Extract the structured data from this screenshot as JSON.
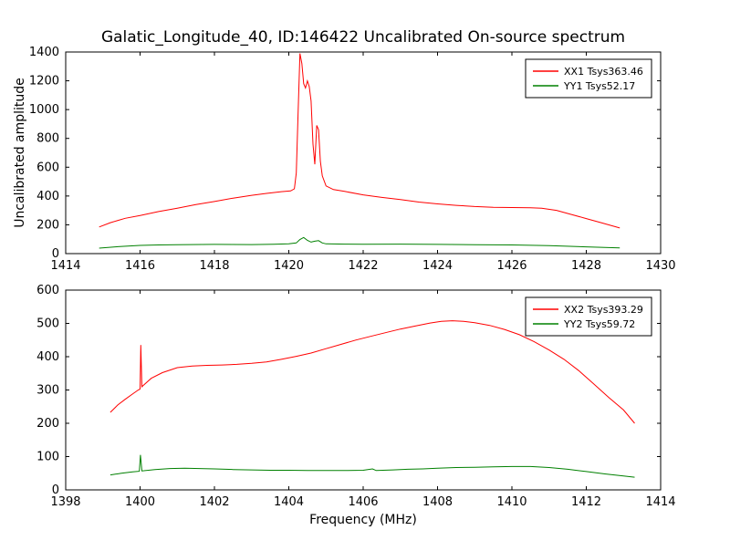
{
  "figure": {
    "background": "#ffffff",
    "frame_color": "#000000"
  },
  "chart_data": [
    {
      "type": "line",
      "title": "Galatic_Longitude_40, ID:146422 Uncalibrated On-source spectrum",
      "xlabel": "",
      "ylabel": "Uncalibrated amplitude",
      "xlim": [
        1414,
        1430
      ],
      "ylim": [
        0,
        1400
      ],
      "xticks": [
        1414,
        1416,
        1418,
        1420,
        1422,
        1424,
        1426,
        1428,
        1430
      ],
      "yticks": [
        0,
        200,
        400,
        600,
        800,
        1000,
        1200,
        1400
      ],
      "grid": false,
      "legend": {
        "position": "upper right",
        "entries": [
          {
            "label": "XX1 Tsys363.46",
            "color": "#ff0000"
          },
          {
            "label": "YY1 Tsys52.17",
            "color": "#008000"
          }
        ]
      },
      "series": [
        {
          "name": "XX1 Tsys363.46",
          "color": "#ff0000",
          "points": [
            [
              1414.9,
              185
            ],
            [
              1415.2,
              215
            ],
            [
              1415.6,
              245
            ],
            [
              1416,
              265
            ],
            [
              1416.5,
              292
            ],
            [
              1417,
              315
            ],
            [
              1417.5,
              340
            ],
            [
              1418,
              362
            ],
            [
              1418.5,
              385
            ],
            [
              1419,
              405
            ],
            [
              1419.4,
              418
            ],
            [
              1419.8,
              430
            ],
            [
              1420.05,
              435
            ],
            [
              1420.15,
              450
            ],
            [
              1420.2,
              560
            ],
            [
              1420.25,
              980
            ],
            [
              1420.3,
              1390
            ],
            [
              1420.35,
              1320
            ],
            [
              1420.4,
              1180
            ],
            [
              1420.45,
              1150
            ],
            [
              1420.5,
              1200
            ],
            [
              1420.55,
              1160
            ],
            [
              1420.6,
              1060
            ],
            [
              1420.65,
              760
            ],
            [
              1420.7,
              620
            ],
            [
              1420.75,
              890
            ],
            [
              1420.8,
              860
            ],
            [
              1420.85,
              640
            ],
            [
              1420.9,
              540
            ],
            [
              1421,
              470
            ],
            [
              1421.2,
              445
            ],
            [
              1421.5,
              432
            ],
            [
              1422,
              408
            ],
            [
              1422.5,
              390
            ],
            [
              1423,
              375
            ],
            [
              1423.5,
              358
            ],
            [
              1424,
              345
            ],
            [
              1424.5,
              335
            ],
            [
              1425,
              327
            ],
            [
              1425.5,
              322
            ],
            [
              1426,
              320
            ],
            [
              1426.5,
              318
            ],
            [
              1426.8,
              315
            ],
            [
              1427.2,
              300
            ],
            [
              1427.6,
              272
            ],
            [
              1428,
              243
            ],
            [
              1428.4,
              215
            ],
            [
              1428.9,
              178
            ]
          ]
        },
        {
          "name": "YY1 Tsys52.17",
          "color": "#008000",
          "points": [
            [
              1414.9,
              38
            ],
            [
              1415.4,
              48
            ],
            [
              1416,
              57
            ],
            [
              1416.5,
              60
            ],
            [
              1417,
              62
            ],
            [
              1418,
              64
            ],
            [
              1419,
              63
            ],
            [
              1419.6,
              65
            ],
            [
              1420,
              68
            ],
            [
              1420.2,
              74
            ],
            [
              1420.3,
              98
            ],
            [
              1420.4,
              112
            ],
            [
              1420.5,
              92
            ],
            [
              1420.6,
              80
            ],
            [
              1420.7,
              86
            ],
            [
              1420.8,
              90
            ],
            [
              1420.9,
              74
            ],
            [
              1421,
              68
            ],
            [
              1421.5,
              66
            ],
            [
              1422,
              65
            ],
            [
              1423,
              66
            ],
            [
              1424,
              64
            ],
            [
              1425,
              62
            ],
            [
              1426,
              60
            ],
            [
              1427,
              55
            ],
            [
              1428,
              47
            ],
            [
              1428.9,
              40
            ]
          ]
        }
      ]
    },
    {
      "type": "line",
      "title": "",
      "xlabel": "Frequency (MHz)",
      "ylabel": "",
      "xlim": [
        1398,
        1414
      ],
      "ylim": [
        0,
        600
      ],
      "xticks": [
        1398,
        1400,
        1402,
        1404,
        1406,
        1408,
        1410,
        1412,
        1414
      ],
      "yticks": [
        0,
        100,
        200,
        300,
        400,
        500,
        600
      ],
      "grid": false,
      "legend": {
        "position": "upper right",
        "entries": [
          {
            "label": "XX2 Tsys393.29",
            "color": "#ff0000"
          },
          {
            "label": "YY2 Tsys59.72",
            "color": "#008000"
          }
        ]
      },
      "series": [
        {
          "name": "XX2 Tsys393.29",
          "color": "#ff0000",
          "points": [
            [
              1399.2,
              233
            ],
            [
              1399.4,
              255
            ],
            [
              1399.6,
              272
            ],
            [
              1399.8,
              288
            ],
            [
              1399.95,
              300
            ],
            [
              1400,
              303
            ],
            [
              1400.02,
              435
            ],
            [
              1400.05,
              310
            ],
            [
              1400.3,
              335
            ],
            [
              1400.6,
              352
            ],
            [
              1401,
              367
            ],
            [
              1401.4,
              372
            ],
            [
              1401.8,
              374
            ],
            [
              1402.2,
              375
            ],
            [
              1402.6,
              377
            ],
            [
              1403,
              380
            ],
            [
              1403.4,
              384
            ],
            [
              1403.8,
              392
            ],
            [
              1404.2,
              401
            ],
            [
              1404.6,
              411
            ],
            [
              1405,
              424
            ],
            [
              1405.4,
              437
            ],
            [
              1405.8,
              450
            ],
            [
              1406.2,
              461
            ],
            [
              1406.6,
              472
            ],
            [
              1407,
              483
            ],
            [
              1407.4,
              492
            ],
            [
              1407.8,
              501
            ],
            [
              1408.1,
              506
            ],
            [
              1408.4,
              508
            ],
            [
              1408.7,
              506
            ],
            [
              1409,
              502
            ],
            [
              1409.4,
              494
            ],
            [
              1409.8,
              482
            ],
            [
              1410.2,
              466
            ],
            [
              1410.6,
              445
            ],
            [
              1411,
              420
            ],
            [
              1411.4,
              392
            ],
            [
              1411.8,
              358
            ],
            [
              1412.2,
              318
            ],
            [
              1412.6,
              278
            ],
            [
              1413,
              240
            ],
            [
              1413.3,
              200
            ]
          ]
        },
        {
          "name": "YY2 Tsys59.72",
          "color": "#008000",
          "points": [
            [
              1399.2,
              45
            ],
            [
              1399.5,
              50
            ],
            [
              1399.8,
              54
            ],
            [
              1399.98,
              56
            ],
            [
              1400.01,
              105
            ],
            [
              1400.05,
              57
            ],
            [
              1400.4,
              61
            ],
            [
              1400.8,
              64
            ],
            [
              1401.2,
              65
            ],
            [
              1401.6,
              64
            ],
            [
              1402,
              63
            ],
            [
              1402.5,
              61
            ],
            [
              1403,
              60
            ],
            [
              1403.5,
              59
            ],
            [
              1404,
              59
            ],
            [
              1404.5,
              58
            ],
            [
              1405,
              58
            ],
            [
              1405.5,
              58
            ],
            [
              1406,
              59
            ],
            [
              1406.25,
              63
            ],
            [
              1406.35,
              58
            ],
            [
              1406.8,
              60
            ],
            [
              1407.2,
              62
            ],
            [
              1407.6,
              63
            ],
            [
              1408,
              65
            ],
            [
              1408.5,
              67
            ],
            [
              1409,
              68
            ],
            [
              1409.5,
              69
            ],
            [
              1410,
              70
            ],
            [
              1410.5,
              70
            ],
            [
              1411,
              67
            ],
            [
              1411.5,
              62
            ],
            [
              1412,
              55
            ],
            [
              1412.5,
              48
            ],
            [
              1413,
              42
            ],
            [
              1413.3,
              38
            ]
          ]
        }
      ]
    }
  ]
}
